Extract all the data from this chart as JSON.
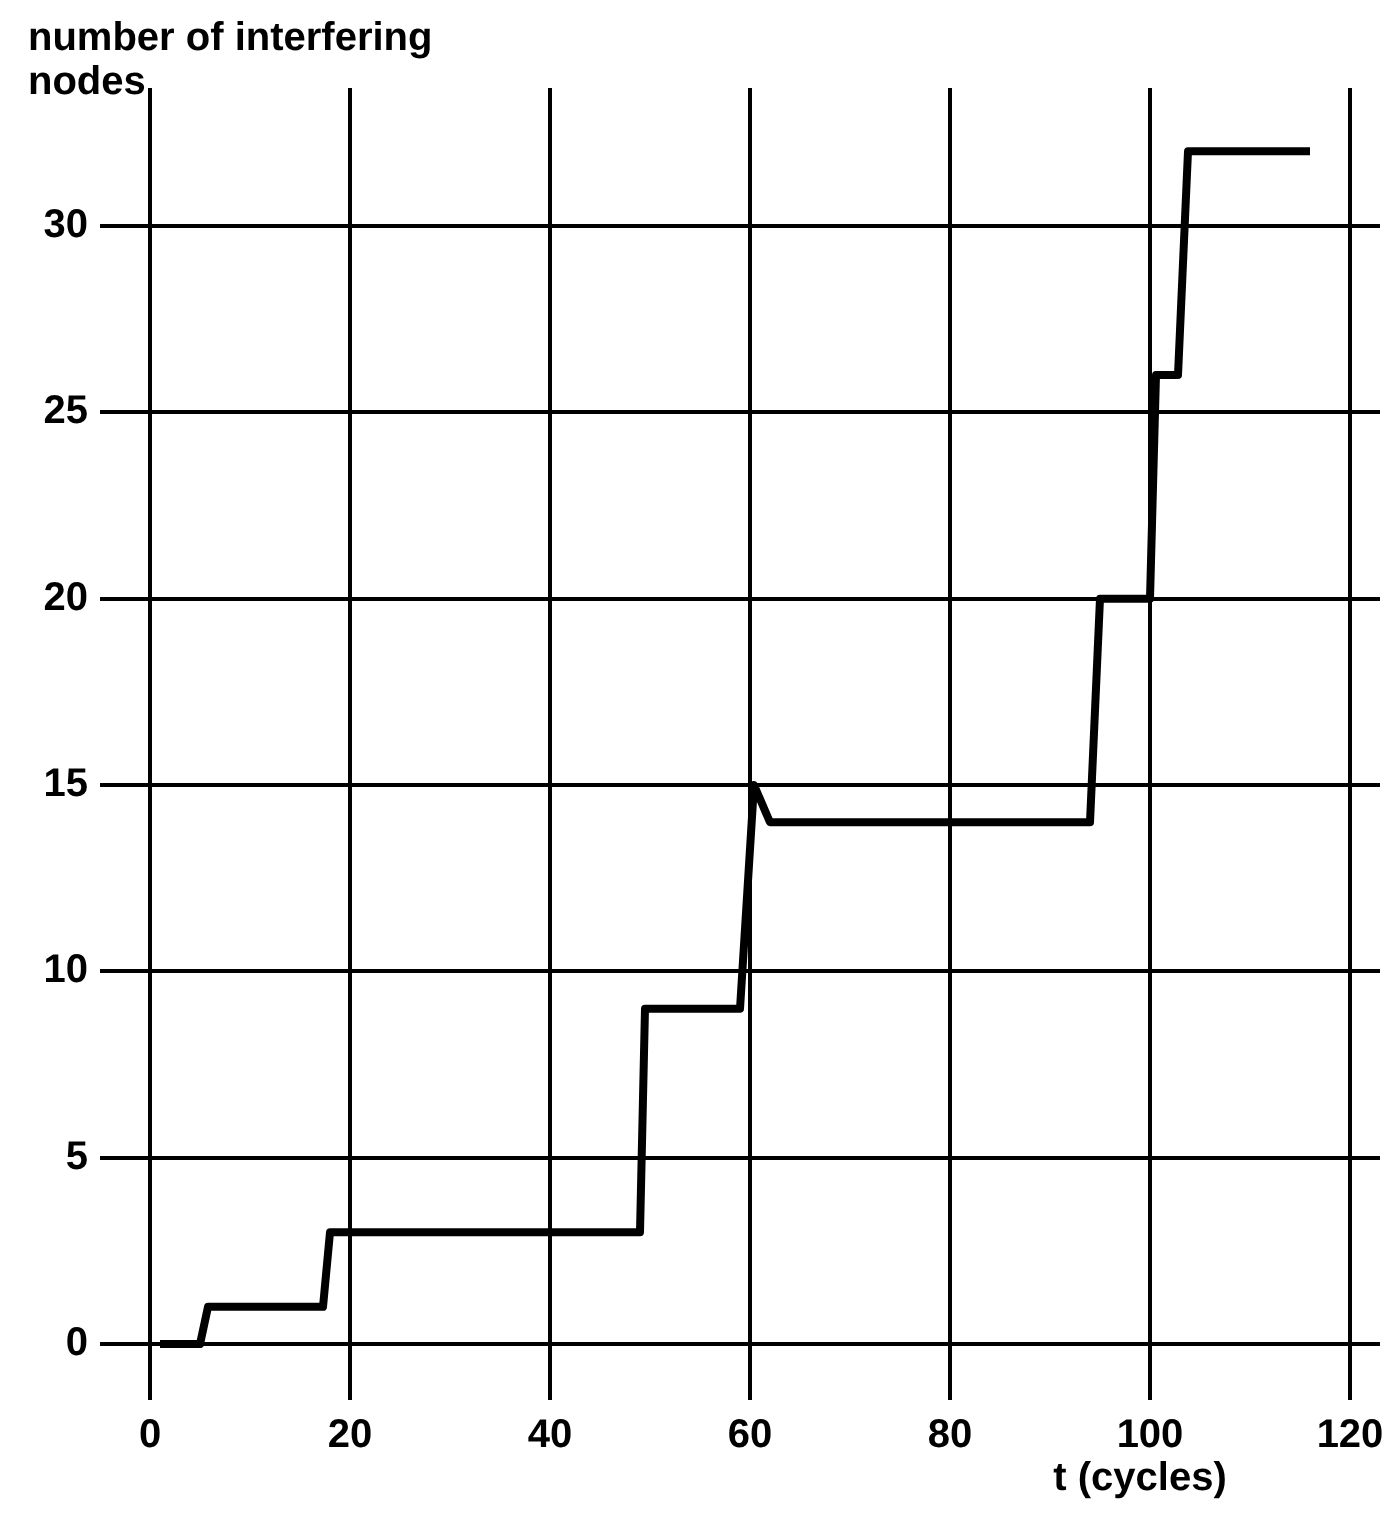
{
  "chart_data": {
    "type": "line",
    "xlabel": "t (cycles)",
    "ylabel": "number of interfering nodes",
    "x": [
      1,
      5,
      5.8,
      17.3,
      18,
      49,
      49.5,
      58.5,
      59,
      60.4,
      62,
      94,
      95,
      100,
      100.6,
      102.8,
      103.8,
      116
    ],
    "series": [
      {
        "color": "#000000",
        "values": [
          0,
          0,
          1,
          1,
          3,
          3,
          9,
          9,
          9,
          15,
          14,
          14,
          20,
          20,
          26,
          26,
          32,
          32
        ]
      }
    ],
    "xlim": [
      -5,
      123
    ],
    "ylim": [
      -1.5,
      33.7
    ],
    "xticks": [
      0,
      20,
      40,
      60,
      80,
      100,
      120
    ],
    "yticks": [
      0,
      5,
      10,
      15,
      20,
      25,
      30
    ],
    "grid": true,
    "marker": "none",
    "line_style": "solid"
  }
}
